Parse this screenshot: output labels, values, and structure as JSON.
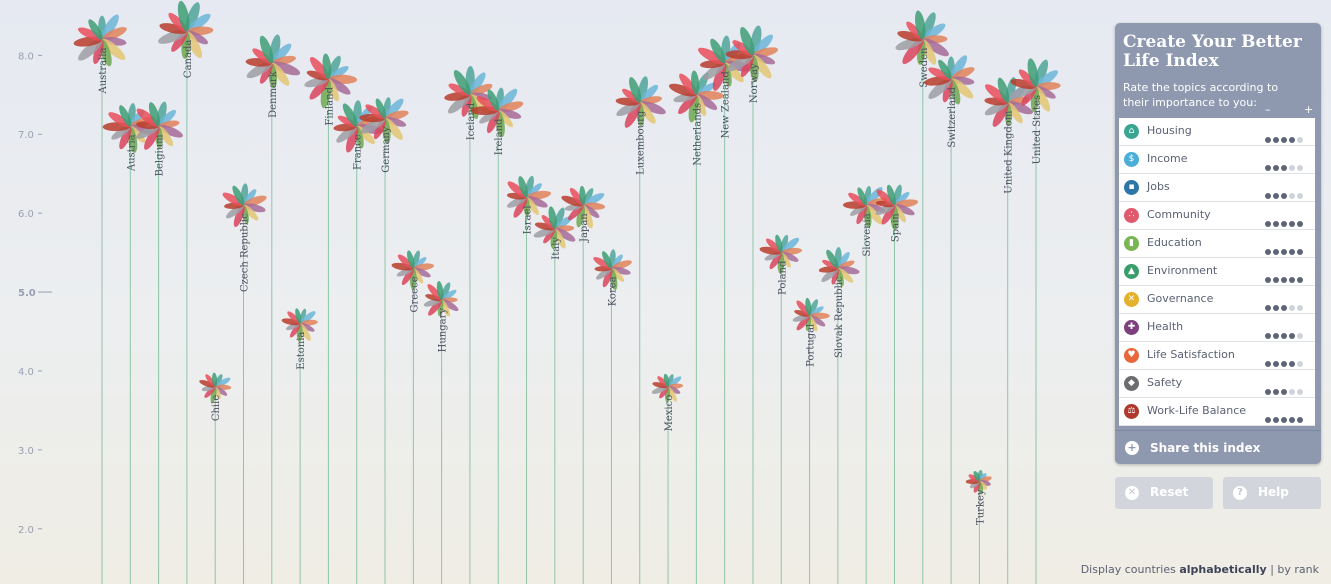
{
  "axis": {
    "ticks": [
      "2.0",
      "3.0",
      "4.0",
      "5.0",
      "6.0",
      "7.0",
      "8.0"
    ],
    "range": [
      1.3,
      8.6
    ]
  },
  "petal_colors": [
    "#4fa59a",
    "#6cb5d9",
    "#e0835a",
    "#a66b98",
    "#e3c774",
    "#6ea851",
    "#d9445d",
    "#9e9ea4",
    "#b83c2c",
    "#e84d5a",
    "#3d9e75"
  ],
  "countries": [
    {
      "name": "Australia",
      "score": 8.2
    },
    {
      "name": "Austria",
      "score": 7.1
    },
    {
      "name": "Belgium",
      "score": 7.1
    },
    {
      "name": "Canada",
      "score": 8.3
    },
    {
      "name": "Chile",
      "score": 3.8
    },
    {
      "name": "Czech Republic",
      "score": 6.1
    },
    {
      "name": "Denmark",
      "score": 7.9
    },
    {
      "name": "Estonia",
      "score": 4.6
    },
    {
      "name": "Finland",
      "score": 7.7
    },
    {
      "name": "France",
      "score": 7.1
    },
    {
      "name": "Germany",
      "score": 7.2
    },
    {
      "name": "Greece",
      "score": 5.3
    },
    {
      "name": "Hungary",
      "score": 4.9
    },
    {
      "name": "Iceland",
      "score": 7.5
    },
    {
      "name": "Ireland",
      "score": 7.3
    },
    {
      "name": "Israel",
      "score": 6.2
    },
    {
      "name": "Italy",
      "score": 5.8
    },
    {
      "name": "Japan",
      "score": 6.1
    },
    {
      "name": "Korea",
      "score": 5.3
    },
    {
      "name": "Luxembourg",
      "score": 7.4
    },
    {
      "name": "Mexico",
      "score": 3.8
    },
    {
      "name": "Netherlands",
      "score": 7.5
    },
    {
      "name": "New Zealand",
      "score": 7.9
    },
    {
      "name": "Norway",
      "score": 8.0
    },
    {
      "name": "Poland",
      "score": 5.5
    },
    {
      "name": "Portugal",
      "score": 4.7
    },
    {
      "name": "Slovak Republic",
      "score": 5.3
    },
    {
      "name": "Slovenia",
      "score": 6.1
    },
    {
      "name": "Spain",
      "score": 6.1
    },
    {
      "name": "Sweden",
      "score": 8.2
    },
    {
      "name": "Switzerland",
      "score": 7.7
    },
    {
      "name": "Turkey",
      "score": 2.6
    },
    {
      "name": "United Kingdom",
      "score": 7.4
    },
    {
      "name": "United States",
      "score": 7.6
    }
  ],
  "panel": {
    "title": "Create Your Better Life Index",
    "subtitle": "Rate the topics according to their importance to you:",
    "minus": "–",
    "plus": "+",
    "topics": [
      {
        "label": "Housing",
        "icon": "house-icon",
        "glyph": "⌂",
        "color": "#3aa590",
        "rating": 4
      },
      {
        "label": "Income",
        "icon": "income-icon",
        "glyph": "$",
        "color": "#4aaed8",
        "rating": 3
      },
      {
        "label": "Jobs",
        "icon": "briefcase-icon",
        "glyph": "▪",
        "color": "#2c77a8",
        "rating": 3
      },
      {
        "label": "Community",
        "icon": "people-icon",
        "glyph": "∴",
        "color": "#e05a6d",
        "rating": 5
      },
      {
        "label": "Education",
        "icon": "book-icon",
        "glyph": "▮",
        "color": "#7ab554",
        "rating": 5
      },
      {
        "label": "Environment",
        "icon": "tree-icon",
        "glyph": "▲",
        "color": "#3a9e6b",
        "rating": 5
      },
      {
        "label": "Governance",
        "icon": "governance-icon",
        "glyph": "✕",
        "color": "#e4b12e",
        "rating": 3
      },
      {
        "label": "Health",
        "icon": "health-cross-icon",
        "glyph": "✚",
        "color": "#7d3f7e",
        "rating": 4
      },
      {
        "label": "Life Satisfaction",
        "icon": "heart-icon",
        "glyph": "♥",
        "color": "#e8683c",
        "rating": 4
      },
      {
        "label": "Safety",
        "icon": "safety-icon",
        "glyph": "◆",
        "color": "#6d6d70",
        "rating": 3
      },
      {
        "label": "Work-Life Balance",
        "icon": "scales-icon",
        "glyph": "⚖",
        "color": "#b0392f",
        "rating": 5
      }
    ],
    "share_label": "Share this index",
    "share_glyph": "+"
  },
  "buttons": {
    "reset": "Reset",
    "reset_glyph": "✕",
    "help": "Help",
    "help_glyph": "?"
  },
  "footer": {
    "prefix": "Display countries",
    "alpha": "alphabetically",
    "sep": "|",
    "rank": "by rank"
  }
}
